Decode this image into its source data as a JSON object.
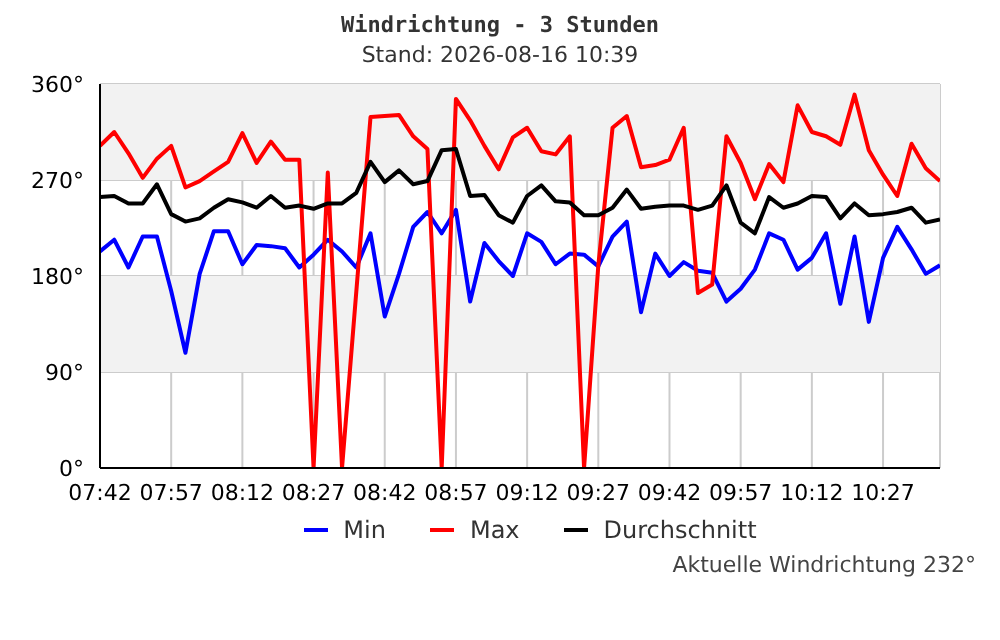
{
  "chart_data": {
    "type": "line",
    "title": "Windrichtung - 3 Stunden",
    "subtitle": "Stand: 2026-08-16 10:39",
    "annotations": [
      "Aktuelle Windrichtung 232°"
    ],
    "x": [
      7.7,
      7.75,
      7.8,
      7.85,
      7.9,
      7.95,
      8,
      8.05,
      8.1,
      8.15,
      8.2,
      8.25,
      8.3,
      8.35,
      8.4,
      8.45,
      8.5,
      8.55,
      8.6,
      8.65,
      8.7,
      8.75,
      8.8,
      8.85,
      8.9,
      8.95,
      9,
      9.05,
      9.1,
      9.15,
      9.2,
      9.25,
      9.3,
      9.35,
      9.4,
      9.45,
      9.5,
      9.55,
      9.6,
      9.65,
      9.7,
      9.75,
      9.8,
      9.85,
      9.9,
      9.95,
      10,
      10.05,
      10.1,
      10.15,
      10.2,
      10.25,
      10.3,
      10.35,
      10.4,
      10.45,
      10.5,
      10.55,
      10.6,
      10.65
    ],
    "series": [
      {
        "name": "Min",
        "color": "#0000ff",
        "values": [
          203,
          214,
          188,
          217,
          217,
          166,
          108,
          182,
          222,
          222,
          191,
          209,
          208,
          206,
          188,
          200,
          214,
          203,
          188,
          220,
          142,
          182,
          226,
          240,
          220,
          242,
          156,
          211,
          194,
          180,
          220,
          212,
          191,
          201,
          200,
          189,
          217,
          231,
          146,
          201,
          180,
          193,
          185,
          183,
          156,
          168,
          186,
          220,
          214,
          186,
          197,
          220,
          154,
          217,
          137,
          197,
          226,
          205,
          182,
          190
        ]
      },
      {
        "name": "Max",
        "color": "#ff0000",
        "values": [
          302,
          315,
          295,
          272,
          290,
          302,
          263,
          269,
          278,
          287,
          314,
          286,
          306,
          289,
          289,
          0,
          277,
          0,
          165,
          329,
          330,
          331,
          311,
          299,
          0,
          346,
          326,
          302,
          280,
          310,
          319,
          297,
          294,
          311,
          0,
          190,
          319,
          330,
          282,
          284,
          289,
          319,
          164,
          172,
          311,
          286,
          252,
          285,
          268,
          340,
          315,
          311,
          303,
          350,
          298,
          275,
          255,
          304,
          281,
          269
        ]
      },
      {
        "name": "Durchschnitt",
        "color": "#000000",
        "values": [
          254,
          255,
          248,
          248,
          266,
          238,
          231,
          234,
          244,
          252,
          249,
          244,
          255,
          244,
          246,
          243,
          248,
          248,
          258,
          287,
          268,
          279,
          266,
          269,
          298,
          299,
          255,
          256,
          237,
          230,
          255,
          265,
          250,
          249,
          237,
          237,
          244,
          261,
          243,
          245,
          246,
          246,
          242,
          246,
          265,
          230,
          220,
          254,
          244,
          248,
          255,
          254,
          234,
          248,
          237,
          238,
          240,
          244,
          230,
          233
        ]
      }
    ],
    "xlim": [
      7.7,
      10.65
    ],
    "xticks": [
      {
        "value": 7.7,
        "label": "07:42"
      },
      {
        "value": 7.95,
        "label": "07:57"
      },
      {
        "value": 8.2,
        "label": "08:12"
      },
      {
        "value": 8.45,
        "label": "08:27"
      },
      {
        "value": 8.7,
        "label": "08:42"
      },
      {
        "value": 8.95,
        "label": "08:57"
      },
      {
        "value": 9.2,
        "label": "09:12"
      },
      {
        "value": 9.45,
        "label": "09:27"
      },
      {
        "value": 9.7,
        "label": "09:42"
      },
      {
        "value": 9.95,
        "label": "09:57"
      },
      {
        "value": 10.2,
        "label": "10:12"
      },
      {
        "value": 10.45,
        "label": "10:27"
      }
    ],
    "ylim": [
      0,
      360
    ],
    "yticks": [
      {
        "value": 0,
        "label": "0°"
      },
      {
        "value": 90,
        "label": "90°"
      },
      {
        "value": 180,
        "label": "180°"
      },
      {
        "value": 270,
        "label": "270°"
      },
      {
        "value": 360,
        "label": "360°"
      }
    ],
    "bands": [
      {
        "axis": "y",
        "from": 90,
        "to": 180,
        "color": "#f2f2f2"
      },
      {
        "axis": "y",
        "from": 270,
        "to": 360,
        "color": "#f2f2f2"
      }
    ],
    "grid": true,
    "legend": "bottom",
    "marker": "none",
    "line_style": "solid"
  }
}
